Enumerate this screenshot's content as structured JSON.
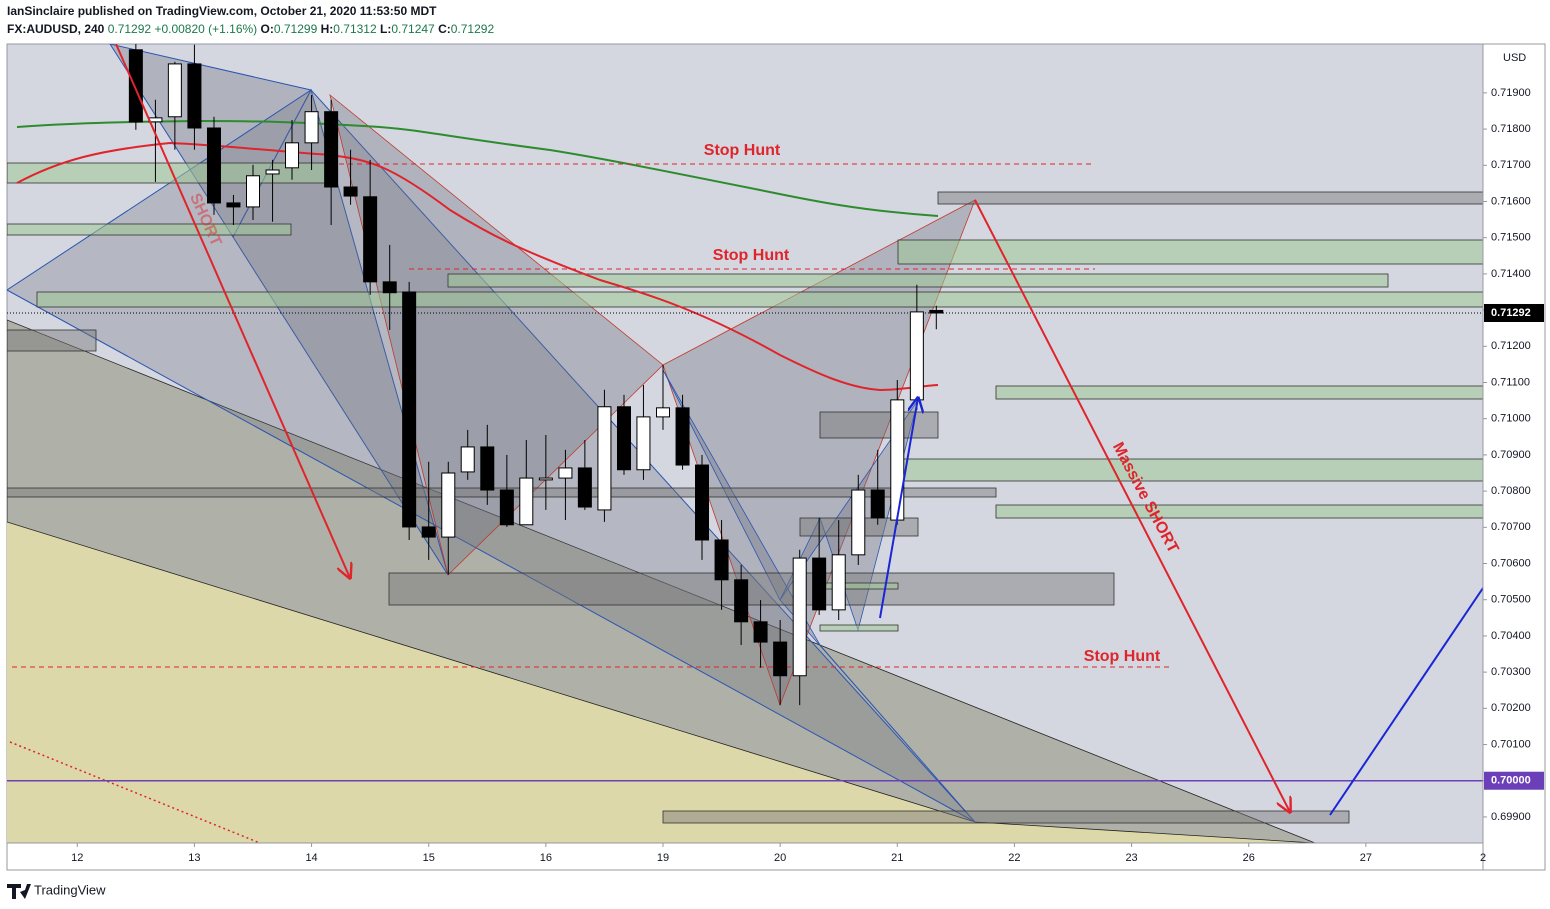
{
  "header": {
    "publisher": "IanSinclaire published on TradingView.com, October 21, 2020 11:53:50 MDT"
  },
  "chart_data": {
    "type": "candlestick",
    "symbol": "FX:AUDUSD, 240",
    "last": "0.71292",
    "change": "+0.00820 (+1.16%)",
    "ohlc_legend": [
      {
        "key": "O:",
        "value": "0.71299"
      },
      {
        "key": "H:",
        "value": "0.71312"
      },
      {
        "key": "L:",
        "value": "0.71247"
      },
      {
        "key": "C:",
        "value": "0.71292"
      }
    ],
    "x": [
      0.5,
      0.667,
      0.833,
      1,
      1.167,
      1.333,
      1.5,
      1.667,
      1.833,
      2,
      2.167,
      2.333,
      2.5,
      2.667,
      2.833,
      3,
      3.167,
      3.333,
      3.5,
      3.667,
      3.833,
      4,
      4.167,
      4.333,
      4.5,
      4.667,
      4.833,
      5,
      5.167,
      5.333,
      5.5,
      5.667,
      5.833,
      6,
      6.167,
      6.333,
      6.5,
      6.667,
      6.833,
      7,
      7.167,
      7.333
    ],
    "open": [
      0.72019,
      0.7182,
      0.71834,
      0.7198,
      0.71803,
      0.71596,
      0.71585,
      0.71676,
      0.71693,
      0.71762,
      0.71848,
      0.7164,
      0.71613,
      0.71378,
      0.7135,
      0.70701,
      0.70673,
      0.70853,
      0.70922,
      0.70803,
      0.70707,
      0.70831,
      0.70836,
      0.70864,
      0.70748,
      0.71033,
      0.70859,
      0.71005,
      0.7103,
      0.70872,
      0.70665,
      0.70555,
      0.70439,
      0.70383,
      0.7029,
      0.70615,
      0.70472,
      0.70624,
      0.70803,
      0.7072,
      0.71052,
      0.71299
    ],
    "high": [
      0.72035,
      0.71881,
      0.71986,
      0.72033,
      0.71834,
      0.71618,
      0.71701,
      0.71715,
      0.71825,
      0.71894,
      0.71881,
      0.71743,
      0.71715,
      0.7148,
      0.71378,
      0.70881,
      0.70881,
      0.70969,
      0.70983,
      0.709,
      0.70941,
      0.70955,
      0.70914,
      0.70941,
      0.7108,
      0.71066,
      0.71093,
      0.71149,
      0.71066,
      0.709,
      0.7072,
      0.70596,
      0.70499,
      0.70444,
      0.70638,
      0.70726,
      0.7072,
      0.70845,
      0.70914,
      0.71107,
      0.7137,
      0.71312
    ],
    "low": [
      0.71798,
      0.71654,
      0.71743,
      0.71743,
      0.71563,
      0.71535,
      0.71549,
      0.71544,
      0.7166,
      0.71687,
      0.71535,
      0.71591,
      0.71342,
      0.71245,
      0.70665,
      0.7061,
      0.70569,
      0.70831,
      0.70762,
      0.70701,
      0.70707,
      0.70748,
      0.7072,
      0.70748,
      0.70715,
      0.70845,
      0.70831,
      0.70969,
      0.70859,
      0.7061,
      0.70472,
      0.70375,
      0.70312,
      0.70209,
      0.70209,
      0.70458,
      0.70444,
      0.70596,
      0.70707,
      0.70707,
      0.71024,
      0.71247
    ],
    "close": [
      0.7182,
      0.71831,
      0.7198,
      0.71803,
      0.71596,
      0.71585,
      0.71671,
      0.71687,
      0.71762,
      0.71848,
      0.7164,
      0.71615,
      0.71378,
      0.71348,
      0.70701,
      0.70673,
      0.7085,
      0.70922,
      0.70803,
      0.70707,
      0.70836,
      0.70836,
      0.70864,
      0.70756,
      0.71033,
      0.70859,
      0.71005,
      0.7103,
      0.70872,
      0.70665,
      0.70555,
      0.70439,
      0.70383,
      0.7029,
      0.70615,
      0.70472,
      0.70624,
      0.70803,
      0.70726,
      0.71052,
      0.71295,
      0.71292
    ],
    "up_color": "#ffffff",
    "down_color": "#000000",
    "xlim": [
      -0.6,
      12
    ],
    "xticks": [
      {
        "value": 0,
        "label": "12"
      },
      {
        "value": 1,
        "label": "13"
      },
      {
        "value": 2,
        "label": "14"
      },
      {
        "value": 3,
        "label": "15"
      },
      {
        "value": 4,
        "label": "16"
      },
      {
        "value": 5,
        "label": "19"
      },
      {
        "value": 6,
        "label": "20"
      },
      {
        "value": 7,
        "label": "21"
      },
      {
        "value": 8,
        "label": "22"
      },
      {
        "value": 9,
        "label": "23"
      },
      {
        "value": 10,
        "label": "26"
      },
      {
        "value": 11,
        "label": "27"
      },
      {
        "value": 12,
        "label": "2"
      }
    ],
    "ylim": [
      0.69828,
      0.72035
    ],
    "yticks": [
      {
        "value": 0.699,
        "label": "0.69900"
      },
      {
        "value": 0.7,
        "label": "0.70000"
      },
      {
        "value": 0.701,
        "label": "0.70100"
      },
      {
        "value": 0.702,
        "label": "0.70200"
      },
      {
        "value": 0.703,
        "label": "0.70300"
      },
      {
        "value": 0.704,
        "label": "0.70400"
      },
      {
        "value": 0.705,
        "label": "0.70500"
      },
      {
        "value": 0.706,
        "label": "0.70600"
      },
      {
        "value": 0.707,
        "label": "0.70700"
      },
      {
        "value": 0.708,
        "label": "0.70800"
      },
      {
        "value": 0.709,
        "label": "0.70900"
      },
      {
        "value": 0.71,
        "label": "0.71000"
      },
      {
        "value": 0.711,
        "label": "0.71100"
      },
      {
        "value": 0.712,
        "label": "0.71200"
      },
      {
        "value": 0.713,
        "label": "0.71300"
      },
      {
        "value": 0.714,
        "label": "0.71400"
      },
      {
        "value": 0.715,
        "label": "0.71500"
      },
      {
        "value": 0.716,
        "label": "0.71600"
      },
      {
        "value": 0.717,
        "label": "0.71700"
      },
      {
        "value": 0.718,
        "label": "0.71800"
      },
      {
        "value": 0.719,
        "label": "0.71900"
      }
    ],
    "y_unit": "USD",
    "price_lines": [
      {
        "value": 0.71292,
        "label": "0.71292",
        "color": "#000000",
        "dotted": true
      },
      {
        "value": 0.7,
        "label": "0.70000",
        "color": "#6a3fb8",
        "dotted": false
      }
    ],
    "annotations": [
      "Stop Hunt",
      "Stop Hunt",
      "Stop Hunt",
      "Massive SHORT",
      "SHORT"
    ]
  },
  "footer": {
    "brand": "TradingView"
  }
}
